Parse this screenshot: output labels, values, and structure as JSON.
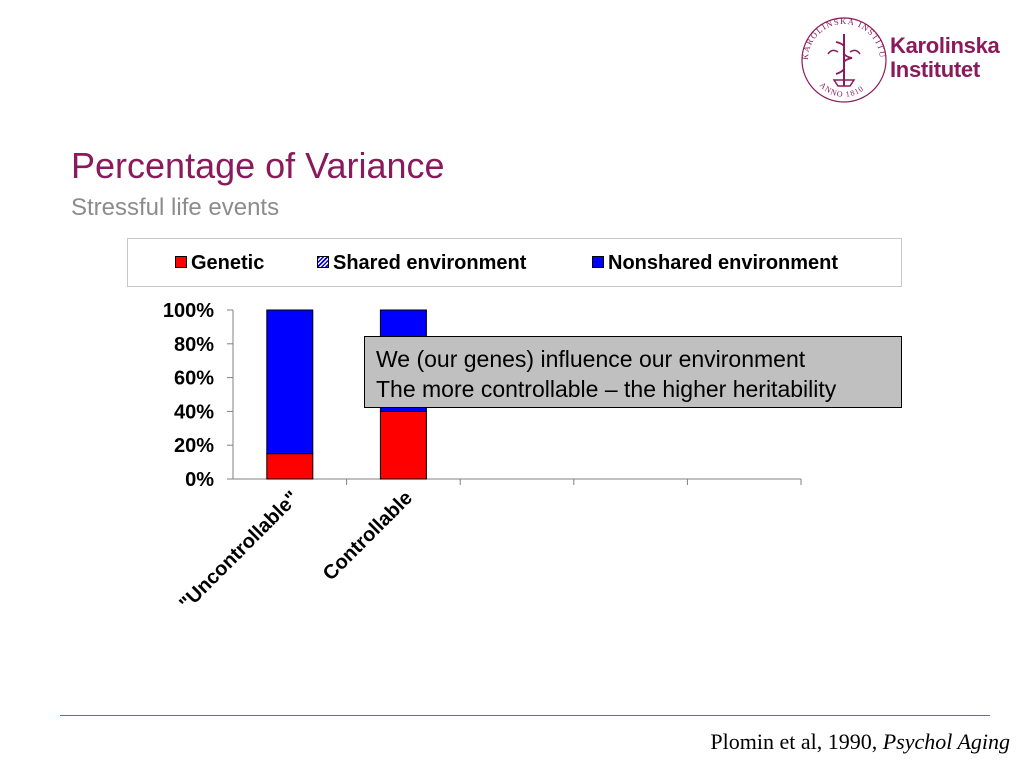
{
  "header": {
    "title": "Percentage of Variance",
    "subtitle": "Stressful life events"
  },
  "logo": {
    "name_line1": "Karolinska",
    "name_line2": "Institutet",
    "seal_text": "KAROLINSKA INSTITUTET",
    "seal_year": "ANNO 1810",
    "brand_color": "#8b1a5c"
  },
  "chart_data": {
    "type": "bar",
    "stacked": true,
    "normalized": true,
    "categories": [
      "\"Uncontrollable\"",
      "Controllable"
    ],
    "series": [
      {
        "name": "Genetic",
        "values": [
          15,
          40
        ],
        "color": "#ff0000",
        "pattern": "solid"
      },
      {
        "name": "Shared environment",
        "values": [
          0,
          0
        ],
        "color": "#0000ff",
        "pattern": "hatched"
      },
      {
        "name": "Nonshared environment",
        "values": [
          85,
          60
        ],
        "color": "#0000ff",
        "pattern": "solid"
      }
    ],
    "ylim": [
      0,
      100
    ],
    "yticks": [
      "0%",
      "20%",
      "40%",
      "60%",
      "80%",
      "100%"
    ],
    "category_slots": 5,
    "legend_position": "top",
    "grid": false
  },
  "callout": {
    "line1": "We (our genes) influence our environment",
    "line2": "The more controllable – the higher heritability"
  },
  "footer": {
    "citation_authors": "Plomin et al, 1990, ",
    "citation_journal": "Psychol Aging"
  }
}
